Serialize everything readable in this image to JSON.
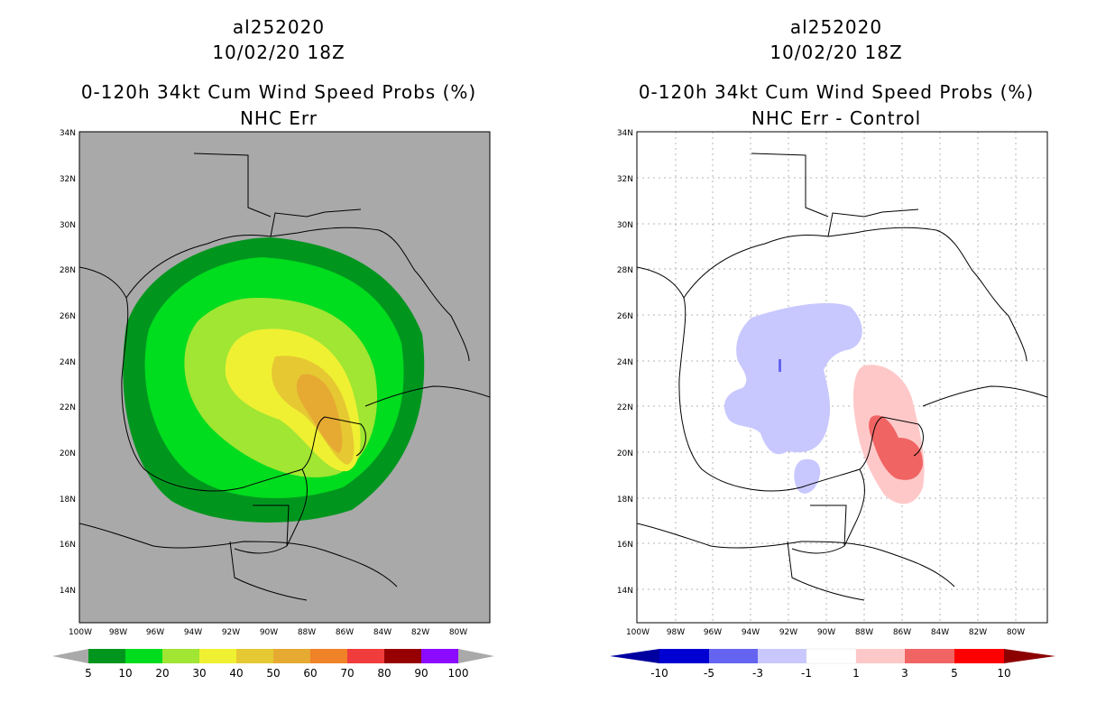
{
  "panels": [
    {
      "storm_id": "al252020",
      "date": "10/02/20 18Z",
      "product": "0-120h 34kt Cum Wind Speed Probs (%)",
      "subtitle": "NHC Err",
      "colors": {
        "background": "#a9a9a9",
        "frame": "#000000"
      },
      "colorbar": {
        "labels": [
          "5",
          "10",
          "20",
          "30",
          "40",
          "50",
          "60",
          "70",
          "80",
          "90",
          "100"
        ],
        "colors": [
          "#00961e",
          "#00dc1e",
          "#a0e632",
          "#f0f032",
          "#e6c832",
          "#e6aa32",
          "#f08228",
          "#f03c3c",
          "#960000",
          "#8c0aff"
        ],
        "end_low": "#a9a9a9",
        "end_high": "#a9a9a9"
      }
    },
    {
      "storm_id": "al252020",
      "date": "10/02/20 18Z",
      "product": "0-120h 34kt Cum Wind Speed Probs (%)",
      "subtitle": "NHC Err - Control",
      "colors": {
        "background": "#ffffff",
        "frame": "#000000"
      },
      "colorbar": {
        "labels": [
          "-10",
          "-5",
          "-3",
          "-1",
          "1",
          "3",
          "5",
          "10"
        ],
        "colors": [
          "#0000d2",
          "#6464f0",
          "#c8c8ff",
          "#ffffff",
          "#ffc8c8",
          "#f06464",
          "#ff0000"
        ],
        "end_low": "#0000a0",
        "end_high": "#8c0000"
      }
    }
  ],
  "lat_labels": [
    "34N",
    "32N",
    "30N",
    "28N",
    "26N",
    "24N",
    "22N",
    "20N",
    "18N",
    "16N",
    "14N"
  ],
  "lon_labels": [
    "100W",
    "98W",
    "96W",
    "94W",
    "92W",
    "90W",
    "88W",
    "86W",
    "84W",
    "82W",
    "80W"
  ],
  "left_contours": [
    {
      "level": "5",
      "color": "#00961e"
    },
    {
      "level": "10",
      "color": "#00dc1e"
    },
    {
      "level": "20",
      "color": "#a0e632"
    },
    {
      "level": "30",
      "color": "#f0f032"
    },
    {
      "level": "40",
      "color": "#e6c832"
    },
    {
      "level": "50",
      "color": "#e6aa32"
    }
  ]
}
